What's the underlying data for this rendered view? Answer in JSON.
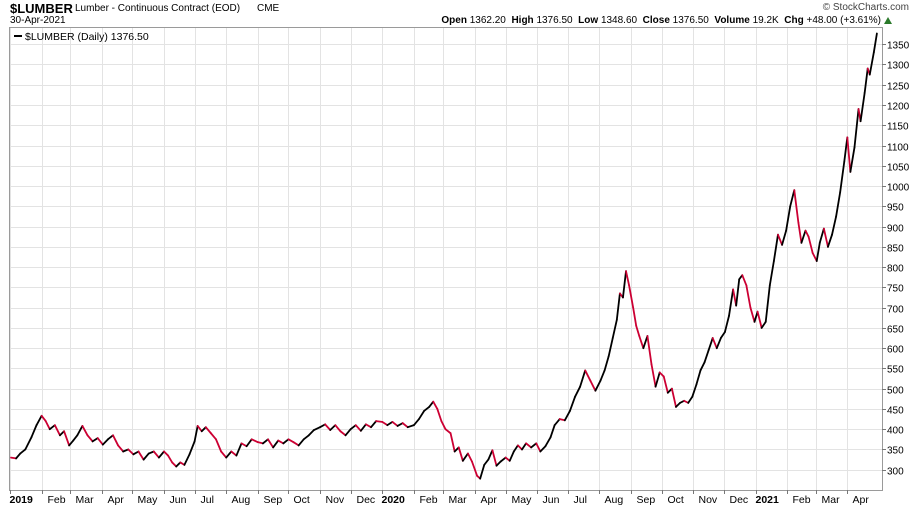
{
  "header": {
    "symbol": "$LUMBER",
    "description": "Lumber - Continuous Contract (EOD)",
    "exchange": "CME",
    "date": "30-Apr-2021",
    "credit": "© StockCharts.com",
    "quote": {
      "open_label": "Open",
      "open": "1362.20",
      "high_label": "High",
      "high": "1376.50",
      "low_label": "Low",
      "low": "1348.60",
      "close_label": "Close",
      "close": "1376.50",
      "volume_label": "Volume",
      "volume": "19.2K",
      "chg_label": "Chg",
      "chg": "+48.00 (+3.61%)"
    }
  },
  "colors": {
    "up": "#000000",
    "down": "#cc0033",
    "grid": "#e3e3e3",
    "arrow": "#2a7a2a"
  },
  "chart_data": {
    "type": "line",
    "title": "$LUMBER Lumber - Continuous Contract (EOD)",
    "legend": {
      "label": "$LUMBER (Daily) 1376.50",
      "placement": "top-left"
    },
    "line_coloring": "black when rising, red when falling",
    "grid": true,
    "ylim": [
      250,
      1390
    ],
    "xlim": [
      "2019-01-01",
      "2021-05-05"
    ],
    "y_ticks": [
      300,
      350,
      400,
      450,
      500,
      550,
      600,
      650,
      700,
      750,
      800,
      850,
      900,
      950,
      1000,
      1050,
      1100,
      1150,
      1200,
      1250,
      1300,
      1350
    ],
    "x_ticks": [
      {
        "date": "2019-01-01",
        "label": "2019",
        "bold": true
      },
      {
        "date": "2019-02-01",
        "label": "Feb"
      },
      {
        "date": "2019-03-01",
        "label": "Mar"
      },
      {
        "date": "2019-04-01",
        "label": "Apr"
      },
      {
        "date": "2019-05-01",
        "label": "May"
      },
      {
        "date": "2019-06-01",
        "label": "Jun"
      },
      {
        "date": "2019-07-01",
        "label": "Jul"
      },
      {
        "date": "2019-08-01",
        "label": "Aug"
      },
      {
        "date": "2019-09-01",
        "label": "Sep"
      },
      {
        "date": "2019-10-01",
        "label": "Oct"
      },
      {
        "date": "2019-11-01",
        "label": "Nov"
      },
      {
        "date": "2019-12-01",
        "label": "Dec"
      },
      {
        "date": "2020-01-01",
        "label": "2020",
        "bold": true
      },
      {
        "date": "2020-02-01",
        "label": "Feb"
      },
      {
        "date": "2020-03-01",
        "label": "Mar"
      },
      {
        "date": "2020-04-01",
        "label": "Apr"
      },
      {
        "date": "2020-05-01",
        "label": "May"
      },
      {
        "date": "2020-06-01",
        "label": "Jun"
      },
      {
        "date": "2020-07-01",
        "label": "Jul"
      },
      {
        "date": "2020-08-01",
        "label": "Aug"
      },
      {
        "date": "2020-09-01",
        "label": "Sep"
      },
      {
        "date": "2020-10-01",
        "label": "Oct"
      },
      {
        "date": "2020-11-01",
        "label": "Nov"
      },
      {
        "date": "2020-12-01",
        "label": "Dec"
      },
      {
        "date": "2021-01-01",
        "label": "2021",
        "bold": true
      },
      {
        "date": "2021-02-01",
        "label": "Feb"
      },
      {
        "date": "2021-03-01",
        "label": "Mar"
      },
      {
        "date": "2021-04-01",
        "label": "Apr"
      }
    ],
    "series": [
      {
        "name": "$LUMBER (Daily)",
        "points": [
          [
            "2019-01-02",
            330
          ],
          [
            "2019-01-07",
            328
          ],
          [
            "2019-01-11",
            340
          ],
          [
            "2019-01-16",
            350
          ],
          [
            "2019-01-22",
            380
          ],
          [
            "2019-01-27",
            410
          ],
          [
            "2019-02-01",
            433
          ],
          [
            "2019-02-05",
            420
          ],
          [
            "2019-02-09",
            400
          ],
          [
            "2019-02-14",
            410
          ],
          [
            "2019-02-19",
            385
          ],
          [
            "2019-02-23",
            395
          ],
          [
            "2019-02-28",
            360
          ],
          [
            "2019-03-04",
            372
          ],
          [
            "2019-03-08",
            385
          ],
          [
            "2019-03-13",
            408
          ],
          [
            "2019-03-18",
            385
          ],
          [
            "2019-03-23",
            370
          ],
          [
            "2019-03-28",
            378
          ],
          [
            "2019-04-02",
            362
          ],
          [
            "2019-04-07",
            375
          ],
          [
            "2019-04-12",
            385
          ],
          [
            "2019-04-17",
            360
          ],
          [
            "2019-04-22",
            345
          ],
          [
            "2019-04-27",
            350
          ],
          [
            "2019-05-02",
            338
          ],
          [
            "2019-05-07",
            345
          ],
          [
            "2019-05-12",
            325
          ],
          [
            "2019-05-17",
            340
          ],
          [
            "2019-05-22",
            345
          ],
          [
            "2019-05-27",
            330
          ],
          [
            "2019-06-01",
            345
          ],
          [
            "2019-06-05",
            335
          ],
          [
            "2019-06-09",
            318
          ],
          [
            "2019-06-13",
            308
          ],
          [
            "2019-06-17",
            318
          ],
          [
            "2019-06-21",
            312
          ],
          [
            "2019-06-26",
            338
          ],
          [
            "2019-07-01",
            370
          ],
          [
            "2019-07-04",
            408
          ],
          [
            "2019-07-08",
            395
          ],
          [
            "2019-07-12",
            405
          ],
          [
            "2019-07-17",
            390
          ],
          [
            "2019-07-22",
            375
          ],
          [
            "2019-07-27",
            345
          ],
          [
            "2019-08-01",
            330
          ],
          [
            "2019-08-06",
            345
          ],
          [
            "2019-08-11",
            335
          ],
          [
            "2019-08-16",
            365
          ],
          [
            "2019-08-21",
            358
          ],
          [
            "2019-08-26",
            375
          ],
          [
            "2019-09-01",
            368
          ],
          [
            "2019-09-06",
            365
          ],
          [
            "2019-09-11",
            375
          ],
          [
            "2019-09-16",
            355
          ],
          [
            "2019-09-21",
            372
          ],
          [
            "2019-09-26",
            365
          ],
          [
            "2019-10-01",
            375
          ],
          [
            "2019-10-06",
            368
          ],
          [
            "2019-10-11",
            360
          ],
          [
            "2019-10-16",
            375
          ],
          [
            "2019-10-21",
            385
          ],
          [
            "2019-10-26",
            398
          ],
          [
            "2019-11-01",
            405
          ],
          [
            "2019-11-06",
            412
          ],
          [
            "2019-11-11",
            398
          ],
          [
            "2019-11-16",
            410
          ],
          [
            "2019-11-21",
            395
          ],
          [
            "2019-11-26",
            385
          ],
          [
            "2019-12-01",
            400
          ],
          [
            "2019-12-06",
            410
          ],
          [
            "2019-12-11",
            396
          ],
          [
            "2019-12-16",
            412
          ],
          [
            "2019-12-21",
            405
          ],
          [
            "2019-12-26",
            420
          ],
          [
            "2020-01-01",
            418
          ],
          [
            "2020-01-06",
            410
          ],
          [
            "2020-01-11",
            418
          ],
          [
            "2020-01-16",
            408
          ],
          [
            "2020-01-21",
            415
          ],
          [
            "2020-01-26",
            405
          ],
          [
            "2020-02-01",
            410
          ],
          [
            "2020-02-06",
            425
          ],
          [
            "2020-02-11",
            445
          ],
          [
            "2020-02-16",
            455
          ],
          [
            "2020-02-20",
            468
          ],
          [
            "2020-02-24",
            450
          ],
          [
            "2020-02-28",
            420
          ],
          [
            "2020-03-03",
            400
          ],
          [
            "2020-03-08",
            390
          ],
          [
            "2020-03-12",
            345
          ],
          [
            "2020-03-16",
            355
          ],
          [
            "2020-03-20",
            322
          ],
          [
            "2020-03-25",
            340
          ],
          [
            "2020-03-29",
            320
          ],
          [
            "2020-04-03",
            285
          ],
          [
            "2020-04-06",
            278
          ],
          [
            "2020-04-10",
            312
          ],
          [
            "2020-04-14",
            325
          ],
          [
            "2020-04-18",
            348
          ],
          [
            "2020-04-22",
            310
          ],
          [
            "2020-04-26",
            320
          ],
          [
            "2020-05-01",
            330
          ],
          [
            "2020-05-05",
            322
          ],
          [
            "2020-05-09",
            345
          ],
          [
            "2020-05-13",
            360
          ],
          [
            "2020-05-17",
            350
          ],
          [
            "2020-05-21",
            365
          ],
          [
            "2020-05-26",
            355
          ],
          [
            "2020-05-31",
            365
          ],
          [
            "2020-06-04",
            345
          ],
          [
            "2020-06-09",
            358
          ],
          [
            "2020-06-14",
            380
          ],
          [
            "2020-06-18",
            410
          ],
          [
            "2020-06-23",
            425
          ],
          [
            "2020-06-28",
            422
          ],
          [
            "2020-07-03",
            445
          ],
          [
            "2020-07-08",
            480
          ],
          [
            "2020-07-13",
            505
          ],
          [
            "2020-07-18",
            545
          ],
          [
            "2020-07-23",
            520
          ],
          [
            "2020-07-28",
            495
          ],
          [
            "2020-08-02",
            520
          ],
          [
            "2020-08-06",
            545
          ],
          [
            "2020-08-10",
            580
          ],
          [
            "2020-08-14",
            625
          ],
          [
            "2020-08-18",
            670
          ],
          [
            "2020-08-21",
            735
          ],
          [
            "2020-08-24",
            725
          ],
          [
            "2020-08-27",
            790
          ],
          [
            "2020-08-30",
            755
          ],
          [
            "2020-09-03",
            700
          ],
          [
            "2020-09-06",
            655
          ],
          [
            "2020-09-09",
            630
          ],
          [
            "2020-09-13",
            600
          ],
          [
            "2020-09-17",
            630
          ],
          [
            "2020-09-21",
            560
          ],
          [
            "2020-09-25",
            505
          ],
          [
            "2020-09-29",
            540
          ],
          [
            "2020-10-03",
            530
          ],
          [
            "2020-10-07",
            490
          ],
          [
            "2020-10-11",
            500
          ],
          [
            "2020-10-15",
            455
          ],
          [
            "2020-10-19",
            465
          ],
          [
            "2020-10-23",
            470
          ],
          [
            "2020-10-27",
            465
          ],
          [
            "2020-10-31",
            480
          ],
          [
            "2020-11-04",
            510
          ],
          [
            "2020-11-08",
            545
          ],
          [
            "2020-11-12",
            565
          ],
          [
            "2020-11-16",
            595
          ],
          [
            "2020-11-20",
            625
          ],
          [
            "2020-11-24",
            600
          ],
          [
            "2020-11-28",
            625
          ],
          [
            "2020-12-02",
            640
          ],
          [
            "2020-12-06",
            680
          ],
          [
            "2020-12-10",
            745
          ],
          [
            "2020-12-13",
            705
          ],
          [
            "2020-12-16",
            770
          ],
          [
            "2020-12-19",
            780
          ],
          [
            "2020-12-23",
            755
          ],
          [
            "2020-12-27",
            700
          ],
          [
            "2020-12-31",
            665
          ],
          [
            "2021-01-03",
            690
          ],
          [
            "2021-01-07",
            650
          ],
          [
            "2021-01-11",
            665
          ],
          [
            "2021-01-15",
            755
          ],
          [
            "2021-01-19",
            815
          ],
          [
            "2021-01-23",
            880
          ],
          [
            "2021-01-27",
            855
          ],
          [
            "2021-01-31",
            890
          ],
          [
            "2021-02-04",
            950
          ],
          [
            "2021-02-08",
            990
          ],
          [
            "2021-02-12",
            910
          ],
          [
            "2021-02-15",
            860
          ],
          [
            "2021-02-19",
            890
          ],
          [
            "2021-02-22",
            875
          ],
          [
            "2021-02-26",
            835
          ],
          [
            "2021-03-02",
            815
          ],
          [
            "2021-03-05",
            860
          ],
          [
            "2021-03-09",
            895
          ],
          [
            "2021-03-13",
            850
          ],
          [
            "2021-03-17",
            880
          ],
          [
            "2021-03-21",
            925
          ],
          [
            "2021-03-25",
            985
          ],
          [
            "2021-03-29",
            1060
          ],
          [
            "2021-04-01",
            1120
          ],
          [
            "2021-04-04",
            1035
          ],
          [
            "2021-04-08",
            1095
          ],
          [
            "2021-04-12",
            1190
          ],
          [
            "2021-04-14",
            1160
          ],
          [
            "2021-04-18",
            1230
          ],
          [
            "2021-04-21",
            1290
          ],
          [
            "2021-04-23",
            1275
          ],
          [
            "2021-04-27",
            1330
          ],
          [
            "2021-04-30",
            1376.5
          ]
        ]
      }
    ]
  }
}
